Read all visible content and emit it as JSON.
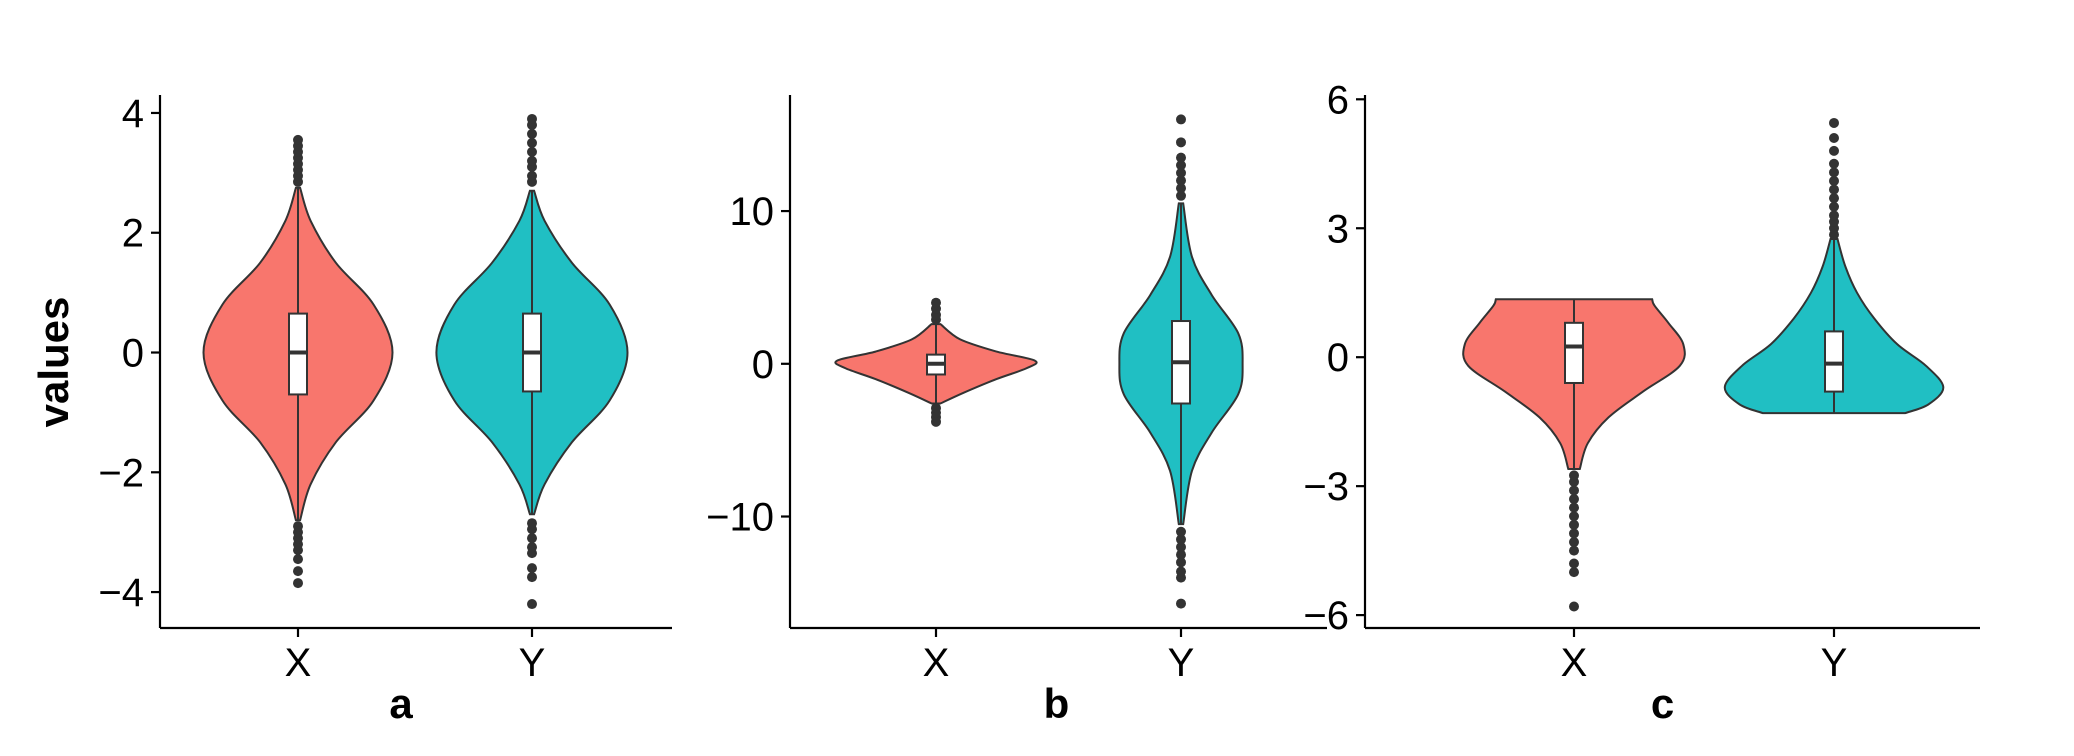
{
  "colors": {
    "X": "#F8766D",
    "Y": "#20BFC3",
    "outline": "#333333",
    "axis": "#000000"
  },
  "shared_y_label": "values",
  "chart_data": [
    {
      "type": "violin",
      "panel": "a",
      "xlabel": "a",
      "ylabel": "values",
      "categories": [
        "X",
        "Y"
      ],
      "ylim": [
        -4.6,
        4.3
      ],
      "yticks": [
        -4,
        -2,
        0,
        2,
        4
      ],
      "ytick_labels": [
        "−4",
        "−2",
        "0",
        "2",
        "4"
      ],
      "series": [
        {
          "category": "X",
          "fill": "#F8766D",
          "box": {
            "q1": -0.7,
            "median": 0.0,
            "q3": 0.65,
            "whisker_low": -2.8,
            "whisker_high": 2.75
          },
          "outliers": [
            -3.85,
            -3.65,
            -3.45,
            -3.3,
            -3.2,
            -3.1,
            -3.0,
            -2.9,
            2.85,
            2.95,
            3.05,
            3.15,
            3.25,
            3.35,
            3.45,
            3.55
          ],
          "density": {
            "y": [
              -2.8,
              -2.2,
              -1.5,
              -0.8,
              0.0,
              0.8,
              1.5,
              2.2,
              2.75
            ],
            "w": [
              0.02,
              0.12,
              0.36,
              0.72,
              0.9,
              0.72,
              0.36,
              0.12,
              0.02
            ]
          }
        },
        {
          "category": "Y",
          "fill": "#20BFC3",
          "box": {
            "q1": -0.65,
            "median": 0.0,
            "q3": 0.65,
            "whisker_low": -2.7,
            "whisker_high": 2.7
          },
          "outliers": [
            -4.2,
            -3.75,
            -3.6,
            -3.35,
            -3.25,
            -3.1,
            -2.95,
            -2.85,
            2.85,
            2.95,
            3.1,
            3.2,
            3.35,
            3.5,
            3.65,
            3.8,
            3.9
          ],
          "density": {
            "y": [
              -2.7,
              -2.2,
              -1.5,
              -0.8,
              0.0,
              0.8,
              1.5,
              2.2,
              2.7
            ],
            "w": [
              0.02,
              0.12,
              0.38,
              0.74,
              0.91,
              0.74,
              0.38,
              0.12,
              0.02
            ]
          }
        }
      ]
    },
    {
      "type": "violin",
      "panel": "b",
      "xlabel": "b",
      "ylabel": "",
      "categories": [
        "X",
        "Y"
      ],
      "ylim": [
        -17.3,
        17.6
      ],
      "yticks": [
        -10,
        0,
        10
      ],
      "ytick_labels": [
        "−10",
        "0",
        "10"
      ],
      "series": [
        {
          "category": "X",
          "fill": "#F8766D",
          "box": {
            "q1": -0.7,
            "median": 0.0,
            "q3": 0.6,
            "whisker_low": -2.6,
            "whisker_high": 2.6
          },
          "outliers": [
            -3.8,
            -3.5,
            -3.2,
            -2.9,
            2.9,
            3.2,
            3.6,
            4.0
          ],
          "density": {
            "y": [
              -2.6,
              -1.9,
              -1.0,
              -0.3,
              0.2,
              0.8,
              1.6,
              2.6
            ],
            "w": [
              0.04,
              0.25,
              0.55,
              0.82,
              0.9,
              0.55,
              0.22,
              0.04
            ]
          }
        },
        {
          "category": "Y",
          "fill": "#20BFC3",
          "box": {
            "q1": -2.6,
            "median": 0.1,
            "q3": 2.8,
            "whisker_low": -10.5,
            "whisker_high": 10.5
          },
          "outliers": [
            -15.7,
            -14.0,
            -13.6,
            -13.0,
            -12.5,
            -12.0,
            -11.5,
            -11.0,
            11.0,
            11.5,
            12.0,
            12.5,
            13.0,
            13.5,
            14.5,
            16.0
          ],
          "density": {
            "y": [
              -10.5,
              -7.0,
              -4.5,
              -2.0,
              0.0,
              2.0,
              4.5,
              7.0,
              10.5
            ],
            "w": [
              0.02,
              0.1,
              0.28,
              0.52,
              0.56,
              0.52,
              0.28,
              0.1,
              0.02
            ]
          }
        }
      ]
    },
    {
      "type": "violin",
      "panel": "c",
      "xlabel": "c",
      "ylabel": "",
      "categories": [
        "X",
        "Y"
      ],
      "ylim": [
        -6.3,
        6.1
      ],
      "yticks": [
        -6,
        -3,
        0,
        3,
        6
      ],
      "ytick_labels": [
        "−6",
        "−3",
        "0",
        "3",
        "6"
      ],
      "series": [
        {
          "category": "X",
          "fill": "#F8766D",
          "box": {
            "q1": -0.6,
            "median": 0.25,
            "q3": 0.8,
            "whisker_low": -2.6,
            "whisker_high": 1.35
          },
          "outliers": [
            -5.8,
            -5.0,
            -4.8,
            -4.5,
            -4.3,
            -4.1,
            -3.9,
            -3.7,
            -3.5,
            -3.3,
            -3.1,
            -2.9,
            -2.75
          ],
          "density": {
            "y": [
              -2.6,
              -2.0,
              -1.4,
              -0.8,
              -0.2,
              0.3,
              0.8,
              1.2,
              1.35
            ],
            "w": [
              0.05,
              0.12,
              0.3,
              0.6,
              0.92,
              0.95,
              0.82,
              0.7,
              0.68
            ]
          }
        },
        {
          "category": "Y",
          "fill": "#20BFC3",
          "box": {
            "q1": -0.8,
            "median": -0.15,
            "q3": 0.6,
            "whisker_low": -1.3,
            "whisker_high": 2.75
          },
          "outliers": [
            2.85,
            3.0,
            3.15,
            3.3,
            3.5,
            3.7,
            3.9,
            4.1,
            4.3,
            4.5,
            4.8,
            5.1,
            5.45
          ],
          "density": {
            "y": [
              -1.3,
              -1.1,
              -0.7,
              -0.2,
              0.3,
              0.9,
              1.5,
              2.1,
              2.75
            ],
            "w": [
              0.62,
              0.82,
              0.95,
              0.8,
              0.55,
              0.35,
              0.2,
              0.1,
              0.03
            ]
          }
        }
      ]
    }
  ]
}
